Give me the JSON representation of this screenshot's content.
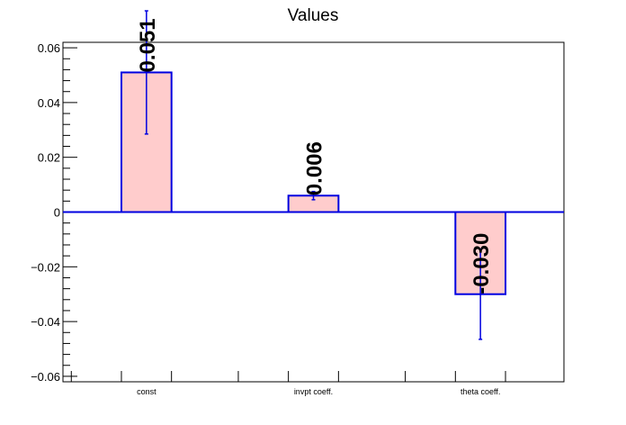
{
  "chart_data": {
    "type": "bar",
    "title": "Values",
    "categories": [
      "const",
      "invpt coeff.",
      "theta coeff."
    ],
    "values": [
      0.051,
      0.006,
      -0.03
    ],
    "value_labels": [
      "0.051",
      "0.006",
      "-0.030"
    ],
    "errors": [
      0.0225,
      0.0015,
      0.0165
    ],
    "ylim": [
      -0.062,
      0.062
    ],
    "yticks": [
      -0.06,
      -0.04,
      -0.02,
      0,
      0.02,
      0.04,
      0.06
    ],
    "ytick_labels": [
      "−0.06",
      "−0.04",
      "−0.02",
      "0",
      "0.02",
      "0.04",
      "0.06"
    ],
    "xlabel": "",
    "ylabel": "",
    "grid": false,
    "colors": {
      "bar_fill": "#ffcccc",
      "bar_edge": "#0000e0",
      "zero_line": "#0000e0",
      "axis": "#000000"
    }
  }
}
